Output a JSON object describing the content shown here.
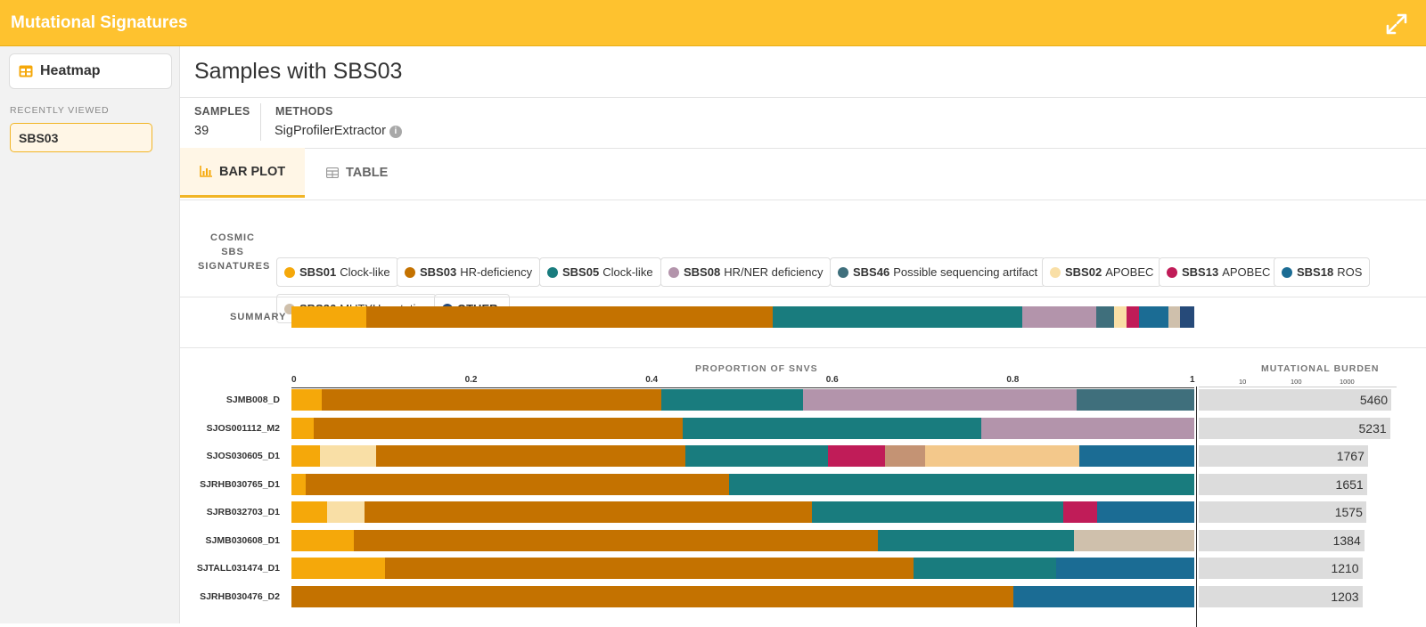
{
  "header": {
    "title": "Mutational Signatures"
  },
  "sidebar": {
    "heatmap_label": "Heatmap",
    "recent_label": "RECENTLY VIEWED",
    "recent_items": [
      "SBS03"
    ]
  },
  "page": {
    "title": "Samples with SBS03"
  },
  "meta": {
    "samples_label": "SAMPLES",
    "samples_value": "39",
    "methods_label": "METHODS",
    "methods_value": "SigProfilerExtractor"
  },
  "tabs": {
    "bar_plot": "BAR PLOT",
    "table": "TABLE"
  },
  "legend": {
    "title_line1": "COSMIC SBS",
    "title_line2": "SIGNATURES",
    "items": [
      {
        "code": "SBS01",
        "desc": "Clock-like",
        "color": "#f5a80a"
      },
      {
        "code": "SBS03",
        "desc": "HR-deficiency",
        "color": "#c47200"
      },
      {
        "code": "SBS05",
        "desc": "Clock-like",
        "color": "#197c7e"
      },
      {
        "code": "SBS08",
        "desc": "HR/NER deficiency",
        "color": "#b394ab"
      },
      {
        "code": "SBS46",
        "desc": "Possible sequencing artifact",
        "color": "#3f6f7c"
      },
      {
        "code": "SBS02",
        "desc": "APOBEC",
        "color": "#f9dfa6"
      },
      {
        "code": "SBS13",
        "desc": "APOBEC",
        "color": "#c01c58"
      },
      {
        "code": "SBS18",
        "desc": "ROS",
        "color": "#1b6c94"
      },
      {
        "code": "SBS36",
        "desc": "MUTYH mutation",
        "color": "#cfc0ac"
      },
      {
        "code": "OTHER",
        "desc": "",
        "color": "#264a79"
      }
    ]
  },
  "summary_label": "SUMMARY",
  "chart_data": {
    "type": "bar",
    "stacked": true,
    "orientation": "horizontal",
    "x_axis_title": "PROPORTION OF SNVS",
    "x_ticks": [
      "0",
      "0.2",
      "0.4",
      "0.6",
      "0.8",
      "1"
    ],
    "xlim": [
      0,
      1
    ],
    "burden_axis_title": "MUTATIONAL BURDEN",
    "burden_ticks": [
      "10",
      "100",
      "1000"
    ],
    "burden_scale": "log",
    "summary": [
      {
        "sig": "SBS01",
        "value": 0.083
      },
      {
        "sig": "SBS03",
        "value": 0.45
      },
      {
        "sig": "SBS05",
        "value": 0.276
      },
      {
        "sig": "SBS08",
        "value": 0.082
      },
      {
        "sig": "SBS46",
        "value": 0.02
      },
      {
        "sig": "SBS02",
        "value": 0.014
      },
      {
        "sig": "SBS13",
        "value": 0.014
      },
      {
        "sig": "SBS18",
        "value": 0.032
      },
      {
        "sig": "SBS36",
        "value": 0.013
      },
      {
        "sig": "OTHER",
        "value": 0.016
      }
    ],
    "samples": [
      {
        "name": "SJMB008_D",
        "burden": "5460",
        "segments": [
          {
            "sig": "SBS01",
            "value": 0.034
          },
          {
            "sig": "SBS03",
            "value": 0.376
          },
          {
            "sig": "SBS05",
            "value": 0.157
          },
          {
            "sig": "SBS08",
            "value": 0.303
          },
          {
            "sig": "SBS46",
            "value": 0.13
          }
        ]
      },
      {
        "name": "SJOS001112_M2",
        "burden": "5231",
        "segments": [
          {
            "sig": "SBS01",
            "value": 0.025
          },
          {
            "sig": "SBS03",
            "value": 0.408
          },
          {
            "sig": "SBS05",
            "value": 0.331
          },
          {
            "sig": "SBS08",
            "value": 0.236
          }
        ]
      },
      {
        "name": "SJOS030605_D1",
        "burden": "1767",
        "segments": [
          {
            "sig": "SBS01",
            "value": 0.032
          },
          {
            "sig": "SBS02",
            "value": 0.062
          },
          {
            "sig": "SBS03",
            "value": 0.342
          },
          {
            "sig": "SBS05",
            "value": 0.158
          },
          {
            "sig": "SBS13",
            "value": 0.063
          },
          {
            "sig": "SBS?",
            "value": 0.045,
            "color": "#c49374"
          },
          {
            "sig": "SBS?",
            "value": 0.171,
            "color": "#f3c88b"
          },
          {
            "sig": "SBS18",
            "value": 0.127
          }
        ]
      },
      {
        "name": "SJRHB030765_D1",
        "burden": "1651",
        "segments": [
          {
            "sig": "SBS01",
            "value": 0.016
          },
          {
            "sig": "SBS03",
            "value": 0.469
          },
          {
            "sig": "SBS05",
            "value": 0.515
          }
        ]
      },
      {
        "name": "SJRB032703_D1",
        "burden": "1575",
        "segments": [
          {
            "sig": "SBS01",
            "value": 0.039
          },
          {
            "sig": "SBS02",
            "value": 0.042
          },
          {
            "sig": "SBS03",
            "value": 0.496
          },
          {
            "sig": "SBS05",
            "value": 0.278
          },
          {
            "sig": "SBS13",
            "value": 0.037
          },
          {
            "sig": "SBS18",
            "value": 0.108
          }
        ]
      },
      {
        "name": "SJMB030608_D1",
        "burden": "1384",
        "segments": [
          {
            "sig": "SBS01",
            "value": 0.069
          },
          {
            "sig": "SBS03",
            "value": 0.581
          },
          {
            "sig": "SBS05",
            "value": 0.217
          },
          {
            "sig": "SBS36",
            "value": 0.133
          }
        ]
      },
      {
        "name": "SJTALL031474_D1",
        "burden": "1210",
        "segments": [
          {
            "sig": "SBS01",
            "value": 0.104
          },
          {
            "sig": "SBS03",
            "value": 0.585
          },
          {
            "sig": "SBS05",
            "value": 0.158
          },
          {
            "sig": "SBS18",
            "value": 0.153
          }
        ]
      },
      {
        "name": "SJRHB030476_D2",
        "burden": "1203",
        "segments": [
          {
            "sig": "SBS03",
            "value": 0.8
          },
          {
            "sig": "SBS18",
            "value": 0.2
          }
        ]
      }
    ]
  }
}
